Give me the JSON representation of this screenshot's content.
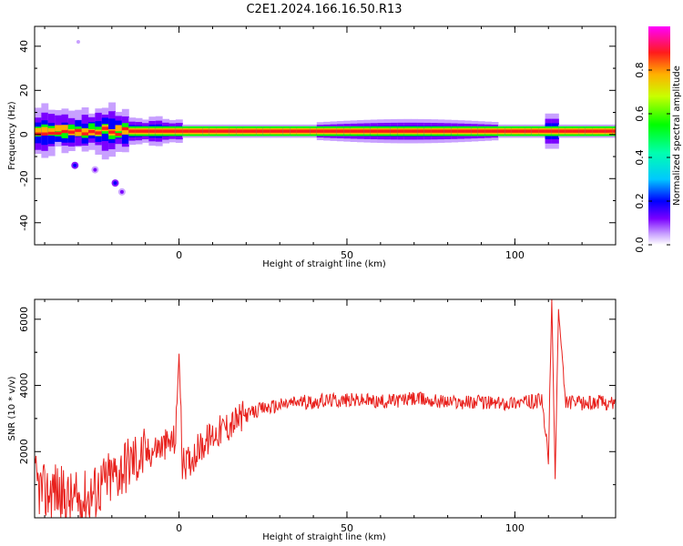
{
  "figure": {
    "title": "C2E1.2024.166.16.50.R13"
  },
  "chart_data": [
    {
      "type": "heatmap",
      "name": "spectrogram",
      "xlabel": "Height of straight line (km)",
      "ylabel": "Frequency (Hz)",
      "xlim": [
        -43,
        130
      ],
      "ylim": [
        -50,
        49
      ],
      "xticks": [
        0,
        50,
        100
      ],
      "xtick_labels": [
        "0",
        "50",
        "100"
      ],
      "yticks": [
        -40,
        -20,
        0,
        20,
        40
      ],
      "ytick_labels": [
        "-40",
        "-20",
        "0",
        "20",
        "40"
      ],
      "grid": false,
      "colorbar": {
        "label": "Normalized spectral amplitude",
        "range": [
          0,
          1
        ],
        "ticks": [
          0.0,
          0.2,
          0.4,
          0.6,
          0.8
        ],
        "tick_labels": [
          "0.0",
          "0.2",
          "0.4",
          "0.6",
          "0.8"
        ],
        "colormap": "gist_ncar",
        "colors": [
          "#ffffff",
          "#c8a0ff",
          "#7a00ff",
          "#0000ff",
          "#00c8ff",
          "#00ffb0",
          "#00ff00",
          "#c8ff00",
          "#ffb000",
          "#ff1b1b",
          "#ff00ff"
        ]
      },
      "band": {
        "description_values": "dominant energy band near 0-3 Hz across heights",
        "center_hz": 1.5,
        "half_width_hz": 1.5
      },
      "scatter_blobs": [
        {
          "x": -31,
          "y": -14,
          "amp": 0.25
        },
        {
          "x": -25,
          "y": -16,
          "amp": 0.2
        },
        {
          "x": -19,
          "y": -22,
          "amp": 0.25
        },
        {
          "x": -17,
          "y": -26,
          "amp": 0.15
        },
        {
          "x": -30,
          "y": 42,
          "amp": 0.05
        }
      ]
    },
    {
      "type": "line",
      "name": "snr",
      "xlabel": "Height of straight line (km)",
      "ylabel": "SNR (10 * v/v)",
      "xlim": [
        -43,
        130
      ],
      "ylim": [
        0,
        6600
      ],
      "xticks": [
        0,
        50,
        100
      ],
      "xtick_labels": [
        "0",
        "50",
        "100"
      ],
      "yticks": [
        2000,
        4000,
        6000
      ],
      "ytick_labels": [
        "2000",
        "4000",
        "6000"
      ],
      "grid": false,
      "color": "#e8201c",
      "series": [
        {
          "x": [
            -43,
            -40,
            -37,
            -34,
            -31,
            -28,
            -25,
            -22,
            -19,
            -16,
            -13,
            -10,
            -7,
            -4,
            -2,
            -1,
            0,
            1,
            3,
            6,
            10,
            15,
            20,
            25,
            30,
            35,
            40,
            45,
            50,
            55,
            60,
            65,
            70,
            75,
            80,
            85,
            90,
            95,
            100,
            105,
            108,
            110,
            111,
            112,
            113,
            115,
            120,
            125,
            130
          ],
          "y": [
            1100,
            700,
            900,
            600,
            500,
            600,
            800,
            1100,
            1300,
            1600,
            1800,
            1900,
            2100,
            2200,
            2300,
            2400,
            5000,
            1600,
            1700,
            2100,
            2500,
            2800,
            3100,
            3300,
            3400,
            3500,
            3500,
            3550,
            3550,
            3550,
            3500,
            3550,
            3600,
            3550,
            3500,
            3500,
            3500,
            3450,
            3500,
            3500,
            3550,
            1800,
            6600,
            1200,
            6300,
            3500,
            3450,
            3500,
            3450
          ]
        }
      ]
    }
  ]
}
